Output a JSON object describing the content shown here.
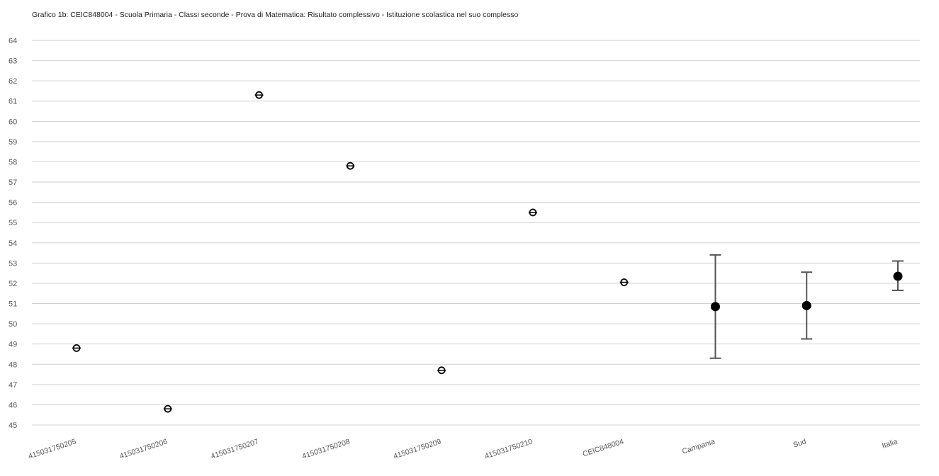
{
  "chart_data": {
    "type": "scatter",
    "title": "Grafico 1b: CEIC848004 - Scuola Primaria - Classi seconde - Prova di Matematica: Risultato complessivo - Istituzione scolastica nel suo complesso",
    "xlabel": "",
    "ylabel": "",
    "ylim": [
      45,
      64
    ],
    "ytick_step": 1,
    "grid": true,
    "categories": [
      "415031750205",
      "415031750206",
      "415031750207",
      "415031750208",
      "415031750209",
      "415031750210",
      "CEIC848004",
      "Campania",
      "Sud",
      "Italia"
    ],
    "values": [
      48.8,
      45.8,
      61.3,
      57.8,
      47.7,
      55.5,
      52.05,
      50.85,
      50.9,
      52.35
    ],
    "error_low": [
      null,
      null,
      null,
      null,
      null,
      null,
      null,
      48.3,
      49.25,
      51.65
    ],
    "error_high": [
      null,
      null,
      null,
      null,
      null,
      null,
      null,
      53.4,
      52.55,
      53.1
    ],
    "marker_style": [
      "open",
      "open",
      "open",
      "open",
      "open",
      "open",
      "open",
      "filled",
      "filled",
      "filled"
    ],
    "colors": {
      "marker": "#000000",
      "grid": "#d0d0d0",
      "errorbar": "#555555",
      "text": "#555555"
    }
  }
}
